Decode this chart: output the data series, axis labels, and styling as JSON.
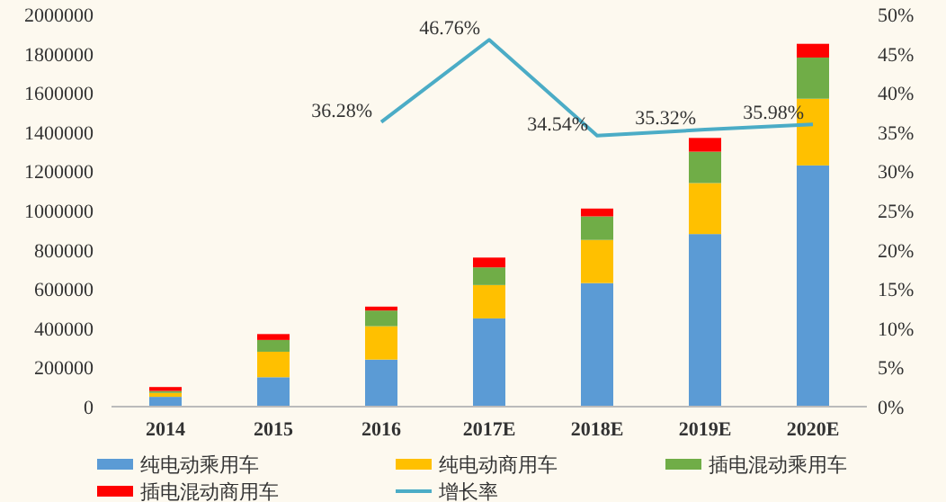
{
  "chart_data": {
    "type": "bar",
    "stacked": true,
    "categories": [
      "2014",
      "2015",
      "2016",
      "2017E",
      "2018E",
      "2019E",
      "2020E"
    ],
    "ylim": [
      0,
      2000000
    ],
    "yticks": [
      0,
      200000,
      400000,
      600000,
      800000,
      1000000,
      1200000,
      1400000,
      1600000,
      1800000,
      2000000
    ],
    "y2lim": [
      0,
      50
    ],
    "y2ticks": [
      {
        "value": 0,
        "label": "0%"
      },
      {
        "value": 5,
        "label": "5%"
      },
      {
        "value": 10,
        "label": "10%"
      },
      {
        "value": 15,
        "label": "15%"
      },
      {
        "value": 20,
        "label": "20%"
      },
      {
        "value": 25,
        "label": "25%"
      },
      {
        "value": 30,
        "label": "30%"
      },
      {
        "value": 35,
        "label": "35%"
      },
      {
        "value": 40,
        "label": "40%"
      },
      {
        "value": 45,
        "label": "45%"
      },
      {
        "value": 50,
        "label": "50%"
      }
    ],
    "legend": "bottom",
    "grid": false,
    "series": [
      {
        "name": "纯电动乘用车",
        "color": "#5b9bd5",
        "values": [
          50000,
          150000,
          240000,
          450000,
          630000,
          880000,
          1230000
        ]
      },
      {
        "name": "纯电动商用车",
        "color": "#ffc000",
        "values": [
          20000,
          130000,
          170000,
          170000,
          220000,
          260000,
          340000
        ]
      },
      {
        "name": "插电混动乘用车",
        "color": "#70ad47",
        "values": [
          10000,
          60000,
          80000,
          90000,
          120000,
          160000,
          210000
        ]
      },
      {
        "name": "插电混动商用车",
        "color": "#ff0000",
        "values": [
          20000,
          30000,
          20000,
          50000,
          40000,
          70000,
          70000
        ]
      },
      {
        "name": "增长率",
        "type": "line",
        "axis": "y2",
        "color": "#4bacc6",
        "marker": "none",
        "data_labels": true,
        "value_labels": [
          null,
          null,
          "36.28%",
          "46.76%",
          "34.54%",
          "35.32%",
          "35.98%"
        ],
        "values": [
          null,
          null,
          36.28,
          46.76,
          34.54,
          35.32,
          35.98
        ]
      }
    ]
  }
}
